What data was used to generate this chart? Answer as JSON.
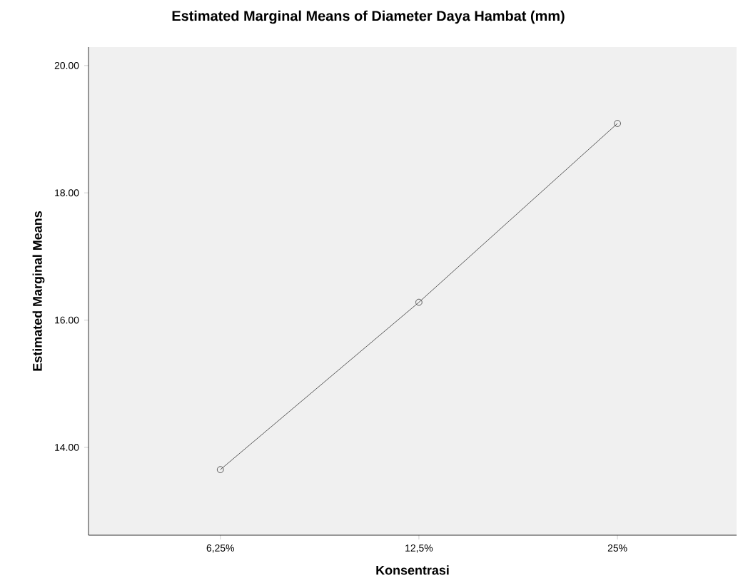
{
  "chart_data": {
    "type": "line",
    "title": "Estimated Marginal Means of Diameter Daya Hambat (mm)",
    "xlabel": "Konsentrasi",
    "ylabel": "Estimated Marginal Means",
    "categories": [
      "6,25%",
      "12,5%",
      "25%"
    ],
    "series": [
      {
        "color": "#333333",
        "values": [
          13.65,
          16.28,
          19.09
        ]
      }
    ],
    "ylim": [
      12.62,
      20.29
    ],
    "yticks": [
      {
        "value": 14,
        "label": "14.00"
      },
      {
        "value": 16,
        "label": "16.00"
      },
      {
        "value": 18,
        "label": "18.00"
      },
      {
        "value": 20,
        "label": "20.00"
      }
    ],
    "marker": "circle",
    "line_style": "solid"
  }
}
